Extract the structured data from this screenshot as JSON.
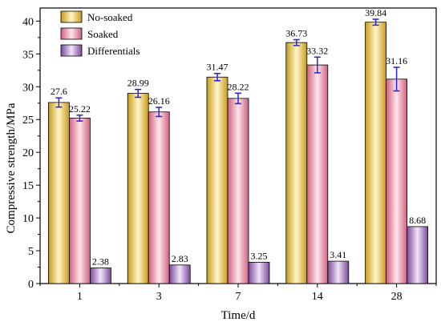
{
  "chart_data": {
    "type": "bar",
    "title": "",
    "xlabel": "Time/d",
    "ylabel": "Compressive strength/MPa",
    "categories": [
      "1",
      "3",
      "7",
      "14",
      "28"
    ],
    "ylim": [
      0,
      42
    ],
    "yticks": [
      0,
      5,
      10,
      15,
      20,
      25,
      30,
      35,
      40
    ],
    "grid": false,
    "legend_position": "top-left",
    "series": [
      {
        "name": "No-soaked",
        "values": [
          27.6,
          28.99,
          31.47,
          36.73,
          39.84
        ],
        "labels": [
          "27.6",
          "28.99",
          "31.47",
          "36.73",
          "39.84"
        ],
        "errors": [
          0.7,
          0.6,
          0.55,
          0.45,
          0.45
        ],
        "color_light": "#fff6c8",
        "color_dark": "#c89a1c"
      },
      {
        "name": "Soaked",
        "values": [
          25.22,
          26.16,
          28.22,
          33.32,
          31.16
        ],
        "labels": [
          "25.22",
          "26.16",
          "28.22",
          "33.32",
          "31.16"
        ],
        "errors": [
          0.45,
          0.7,
          0.8,
          1.2,
          1.8
        ],
        "color_light": "#fde6ec",
        "color_dark": "#d0607e"
      },
      {
        "name": "Differentials",
        "values": [
          2.38,
          2.83,
          3.25,
          3.41,
          8.68
        ],
        "labels": [
          "2.38",
          "2.83",
          "3.25",
          "3.41",
          "8.68"
        ],
        "errors": [
          0,
          0,
          0,
          0,
          0
        ],
        "color_light": "#f0e4f8",
        "color_dark": "#7b4a9c"
      }
    ],
    "error_bar_color": "#2a1fd8"
  }
}
